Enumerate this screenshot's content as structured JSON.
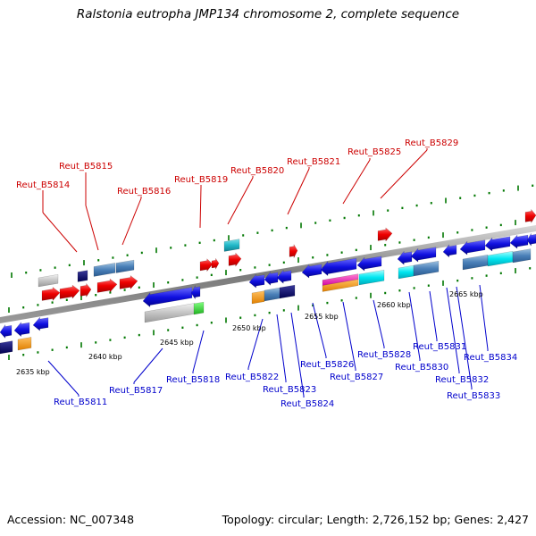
{
  "title": "Ralstonia eutropha JMP134 chromosome 2, complete sequence",
  "footer": {
    "accession": "Accession: NC_007348",
    "summary": "Topology: circular; Length: 2,726,152 bp; Genes: 2,427"
  },
  "colors": {
    "backbone": "#8a8a8a",
    "forward_label": "#cc0000",
    "reverse_label": "#0000cc",
    "ticks": "#007700"
  },
  "scale_labels": [
    "2635 kbp",
    "2640 kbp",
    "2645 kbp",
    "2650 kbp",
    "2655 kbp",
    "2660 kbp",
    "2665 kbp"
  ],
  "top_labels": [
    "Reut_B5814",
    "Reut_B5815",
    "Reut_B5816",
    "Reut_B5819",
    "Reut_B5820",
    "Reut_B5821",
    "Reut_B5825",
    "Reut_B5829"
  ],
  "bottom_labels": [
    "Reut_B5811",
    "Reut_B5817",
    "Reut_B5818",
    "Reut_B5822",
    "Reut_B5823",
    "Reut_B5824",
    "Reut_B5826",
    "Reut_B5827",
    "Reut_B5828",
    "Reut_B5830",
    "Reut_B5831",
    "Reut_B5832",
    "Reut_B5833",
    "Reut_B5834"
  ],
  "legend": null
}
